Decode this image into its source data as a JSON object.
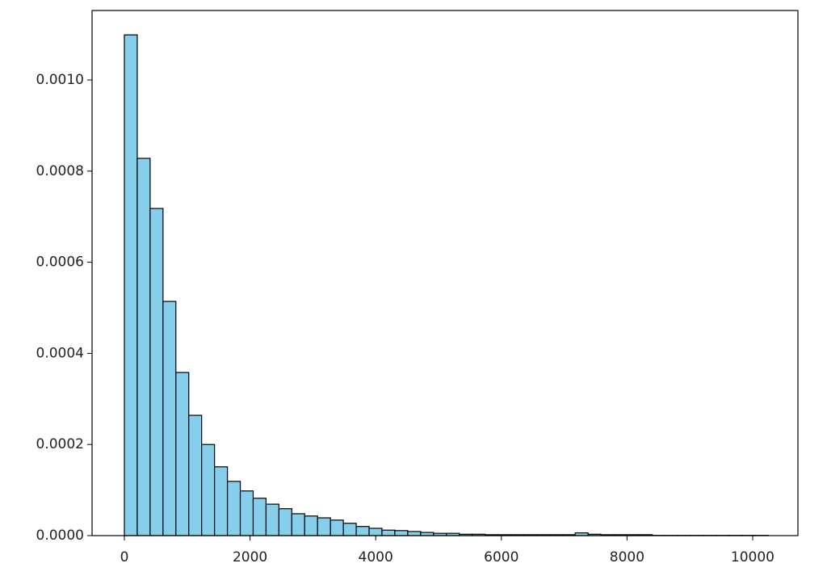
{
  "chart_data": {
    "type": "histogram",
    "bins": [
      0,
      205,
      410,
      615,
      820,
      1025,
      1230,
      1435,
      1640,
      1845,
      2050,
      2255,
      2460,
      2665,
      2870,
      3075,
      3280,
      3485,
      3690,
      3895,
      4100,
      4305,
      4510,
      4715,
      4920,
      5125,
      5330,
      5535,
      5740,
      5945,
      6150,
      6355,
      6560,
      6765,
      6970,
      7175,
      7380,
      7585,
      7790,
      7995,
      8200,
      8405,
      8610,
      8815,
      9020,
      9225,
      9430,
      9635,
      9840,
      10045,
      10250
    ],
    "values": [
      0.001099,
      0.000828,
      0.000718,
      0.000514,
      0.000358,
      0.000264,
      0.0002,
      0.000151,
      0.000119,
      9.8e-05,
      8.2e-05,
      6.9e-05,
      5.9e-05,
      4.8e-05,
      4.3e-05,
      3.9e-05,
      3.4e-05,
      2.7e-05,
      2e-05,
      1.6e-05,
      1.2e-05,
      1.1e-05,
      9e-06,
      7e-06,
      5e-06,
      5e-06,
      3e-06,
      3e-06,
      2e-06,
      2e-06,
      2e-06,
      2e-06,
      2e-06,
      2e-06,
      2e-06,
      6e-06,
      3e-06,
      2e-06,
      2e-06,
      2e-06,
      2e-06,
      5e-07,
      5e-07,
      5e-07,
      5e-07,
      5e-07,
      5e-07,
      5e-07,
      5e-07,
      5e-07
    ],
    "color": "#87ceeb",
    "edgecolor": "#000000",
    "xlim": [
      -514,
      10720
    ],
    "ylim": [
      0,
      0.0011525
    ],
    "xticks": [
      0,
      2000,
      4000,
      6000,
      8000,
      10000
    ],
    "yticks": [
      {
        "value": 0,
        "label": "0.0000"
      },
      {
        "value": 0.0002,
        "label": "0.0002"
      },
      {
        "value": 0.0004,
        "label": "0.0004"
      },
      {
        "value": 0.0006,
        "label": "0.0006"
      },
      {
        "value": 0.0008,
        "label": "0.0008"
      },
      {
        "value": 0.001,
        "label": "0.0010"
      }
    ],
    "grid": false
  }
}
